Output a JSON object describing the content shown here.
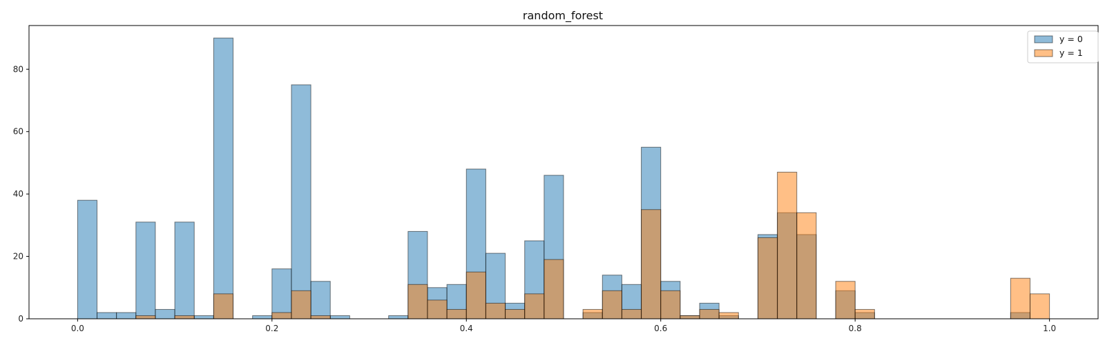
{
  "chart_data": {
    "type": "bar",
    "title": "random_forest",
    "xlabel": "",
    "ylabel": "",
    "xlim": [
      -0.05,
      1.05
    ],
    "ylim": [
      0,
      94
    ],
    "bin_width": 0.02,
    "x_ticks": [
      "0.0",
      "0.2",
      "0.4",
      "0.6",
      "0.8",
      "1.0"
    ],
    "y_ticks": [
      "0",
      "20",
      "40",
      "60",
      "80"
    ],
    "x_tick_values": [
      0.0,
      0.2,
      0.4,
      0.6,
      0.8,
      1.0
    ],
    "y_tick_values": [
      0,
      20,
      40,
      60,
      80
    ],
    "legend_position": "top-right",
    "grid": false,
    "series": [
      {
        "name": "y = 0",
        "color": "#1f77b4",
        "bins": [
          {
            "x": 0.0,
            "count": 38
          },
          {
            "x": 0.02,
            "count": 2
          },
          {
            "x": 0.04,
            "count": 2
          },
          {
            "x": 0.06,
            "count": 31
          },
          {
            "x": 0.08,
            "count": 3
          },
          {
            "x": 0.1,
            "count": 31
          },
          {
            "x": 0.12,
            "count": 1
          },
          {
            "x": 0.14,
            "count": 90
          },
          {
            "x": 0.18,
            "count": 1
          },
          {
            "x": 0.2,
            "count": 16
          },
          {
            "x": 0.22,
            "count": 75
          },
          {
            "x": 0.24,
            "count": 12
          },
          {
            "x": 0.26,
            "count": 1
          },
          {
            "x": 0.32,
            "count": 1
          },
          {
            "x": 0.34,
            "count": 28
          },
          {
            "x": 0.36,
            "count": 10
          },
          {
            "x": 0.38,
            "count": 11
          },
          {
            "x": 0.4,
            "count": 48
          },
          {
            "x": 0.42,
            "count": 21
          },
          {
            "x": 0.44,
            "count": 5
          },
          {
            "x": 0.46,
            "count": 25
          },
          {
            "x": 0.48,
            "count": 46
          },
          {
            "x": 0.52,
            "count": 2
          },
          {
            "x": 0.54,
            "count": 14
          },
          {
            "x": 0.56,
            "count": 11
          },
          {
            "x": 0.58,
            "count": 55
          },
          {
            "x": 0.6,
            "count": 12
          },
          {
            "x": 0.62,
            "count": 1
          },
          {
            "x": 0.64,
            "count": 5
          },
          {
            "x": 0.66,
            "count": 1
          },
          {
            "x": 0.7,
            "count": 27
          },
          {
            "x": 0.72,
            "count": 34
          },
          {
            "x": 0.74,
            "count": 27
          },
          {
            "x": 0.78,
            "count": 9
          },
          {
            "x": 0.8,
            "count": 2
          },
          {
            "x": 0.96,
            "count": 2
          }
        ]
      },
      {
        "name": "y = 1",
        "color": "#ff7f0e",
        "bins": [
          {
            "x": 0.06,
            "count": 1
          },
          {
            "x": 0.1,
            "count": 1
          },
          {
            "x": 0.14,
            "count": 8
          },
          {
            "x": 0.2,
            "count": 2
          },
          {
            "x": 0.22,
            "count": 9
          },
          {
            "x": 0.24,
            "count": 1
          },
          {
            "x": 0.34,
            "count": 11
          },
          {
            "x": 0.36,
            "count": 6
          },
          {
            "x": 0.38,
            "count": 3
          },
          {
            "x": 0.4,
            "count": 15
          },
          {
            "x": 0.42,
            "count": 5
          },
          {
            "x": 0.44,
            "count": 3
          },
          {
            "x": 0.46,
            "count": 8
          },
          {
            "x": 0.48,
            "count": 19
          },
          {
            "x": 0.52,
            "count": 3
          },
          {
            "x": 0.54,
            "count": 9
          },
          {
            "x": 0.56,
            "count": 3
          },
          {
            "x": 0.58,
            "count": 35
          },
          {
            "x": 0.6,
            "count": 9
          },
          {
            "x": 0.62,
            "count": 1
          },
          {
            "x": 0.64,
            "count": 3
          },
          {
            "x": 0.66,
            "count": 2
          },
          {
            "x": 0.7,
            "count": 26
          },
          {
            "x": 0.72,
            "count": 47
          },
          {
            "x": 0.74,
            "count": 34
          },
          {
            "x": 0.78,
            "count": 12
          },
          {
            "x": 0.8,
            "count": 3
          },
          {
            "x": 0.96,
            "count": 13
          },
          {
            "x": 0.98,
            "count": 8
          }
        ]
      }
    ]
  }
}
